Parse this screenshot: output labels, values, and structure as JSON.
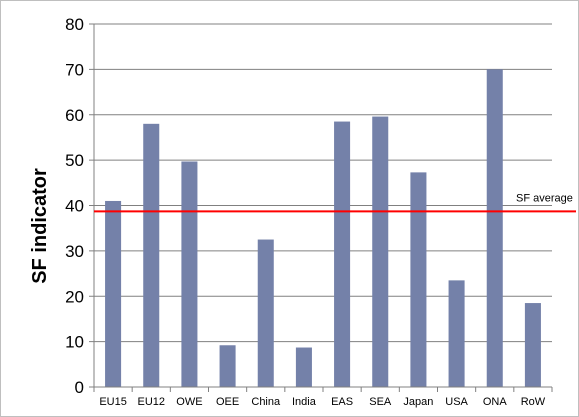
{
  "chart_data": {
    "type": "bar",
    "categories": [
      "EU15",
      "EU12",
      "OWE",
      "OEE",
      "China",
      "India",
      "EAS",
      "SEA",
      "Japan",
      "USA",
      "ONA",
      "RoW"
    ],
    "values": [
      41,
      58,
      49.7,
      9.2,
      32.5,
      8.7,
      58.5,
      59.6,
      47.3,
      23.5,
      70,
      18.5
    ],
    "ylabel": "SF indicator",
    "xlabel": "",
    "ylim": [
      0,
      80
    ],
    "yticks": [
      0,
      10,
      20,
      30,
      40,
      50,
      60,
      70,
      80
    ],
    "grid": true,
    "reference_line": {
      "label": "SF average",
      "value": 38.7,
      "color": "#ff0000"
    },
    "bar_color": "#7481a9",
    "grid_color": "#808080"
  }
}
